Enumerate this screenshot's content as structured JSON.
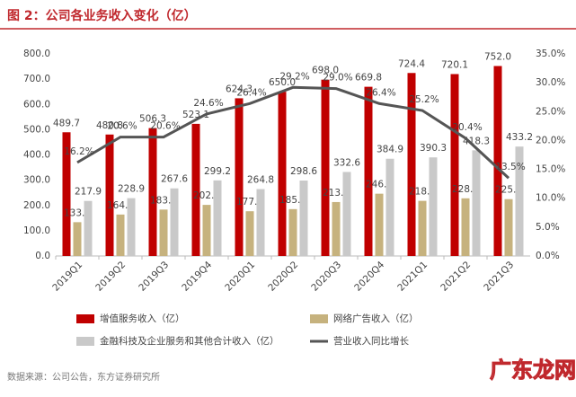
{
  "chart_data": {
    "type": "bar-line",
    "title": "图 2：公司各业务收入变化（亿）",
    "source": "数据来源：公司公告，东方证券研究所",
    "watermark": "广东龙网",
    "categories": [
      "2019Q1",
      "2019Q2",
      "2019Q3",
      "2019Q4",
      "2020Q1",
      "2020Q2",
      "2020Q3",
      "2020Q4",
      "2021Q1",
      "2021Q2",
      "2021Q3"
    ],
    "ylim": [
      0,
      800
    ],
    "yticks": [
      {
        "value": 0,
        "label": "0.0"
      },
      {
        "value": 100,
        "label": "100.0"
      },
      {
        "value": 200,
        "label": "200.0"
      },
      {
        "value": 300,
        "label": "300.0"
      },
      {
        "value": 400,
        "label": "400.0"
      },
      {
        "value": 500,
        "label": "500.0"
      },
      {
        "value": 600,
        "label": "600.0"
      },
      {
        "value": 700,
        "label": "700.0"
      },
      {
        "value": 800,
        "label": "800.0"
      }
    ],
    "y2lim": [
      0,
      35
    ],
    "y2ticks": [
      {
        "value": 0,
        "label": "0.0%"
      },
      {
        "value": 5,
        "label": "5.0%"
      },
      {
        "value": 10,
        "label": "10.0%"
      },
      {
        "value": 15,
        "label": "15.0%"
      },
      {
        "value": 20,
        "label": "20.0%"
      },
      {
        "value": 25,
        "label": "25.0%"
      },
      {
        "value": 30,
        "label": "30.0%"
      },
      {
        "value": 35,
        "label": "35.0%"
      }
    ],
    "series": [
      {
        "name": "增值服务收入（亿）",
        "type": "bar",
        "color": "#c00000",
        "values": [
          489.7,
          480.8,
          506.3,
          523.1,
          624.3,
          650.0,
          698.0,
          669.8,
          724.4,
          720.1,
          752.0
        ],
        "value_labels": [
          "489.7",
          "480.8",
          "506.3",
          "523.1",
          "624.3",
          "650.0",
          "698.0",
          "669.8",
          "724.4",
          "720.1",
          "752.0"
        ]
      },
      {
        "name": "网络广告收入（亿）",
        "type": "bar",
        "color": "#c6b27e",
        "values": [
          133.8,
          164.1,
          183.7,
          202.3,
          177.1,
          185.5,
          213.5,
          246.6,
          218.2,
          228.3,
          225.0
        ],
        "value_labels": [
          "133.8",
          "164.1",
          "183.7",
          "202.3",
          "177.1",
          "185.5",
          "213.5",
          "246.6",
          "218.2",
          "228.3",
          "225.0"
        ]
      },
      {
        "name": "金融科技及企业服务和其他合计收入（亿）",
        "type": "bar",
        "color": "#c9c9c9",
        "values": [
          217.9,
          228.9,
          267.6,
          299.2,
          264.8,
          298.6,
          332.6,
          384.9,
          390.3,
          418.3,
          433.2
        ],
        "value_labels": [
          "217.9",
          "228.9",
          "267.6",
          "299.2",
          "264.8",
          "298.6",
          "332.6",
          "384.9",
          "390.3",
          "418.3",
          "433.2"
        ]
      },
      {
        "name": "营业收入同比增长",
        "type": "line",
        "axis": "y2",
        "color": "#555555",
        "values": [
          16.2,
          20.6,
          20.6,
          24.6,
          26.4,
          29.2,
          29.0,
          26.4,
          25.2,
          20.4,
          13.5
        ],
        "value_labels": [
          "16.2%",
          "20.6%",
          "20.6%",
          "24.6%",
          "26.4%",
          "29.2%",
          "29.0%",
          "26.4%",
          "25.2%",
          "20.4%",
          "13.5%"
        ]
      }
    ]
  }
}
